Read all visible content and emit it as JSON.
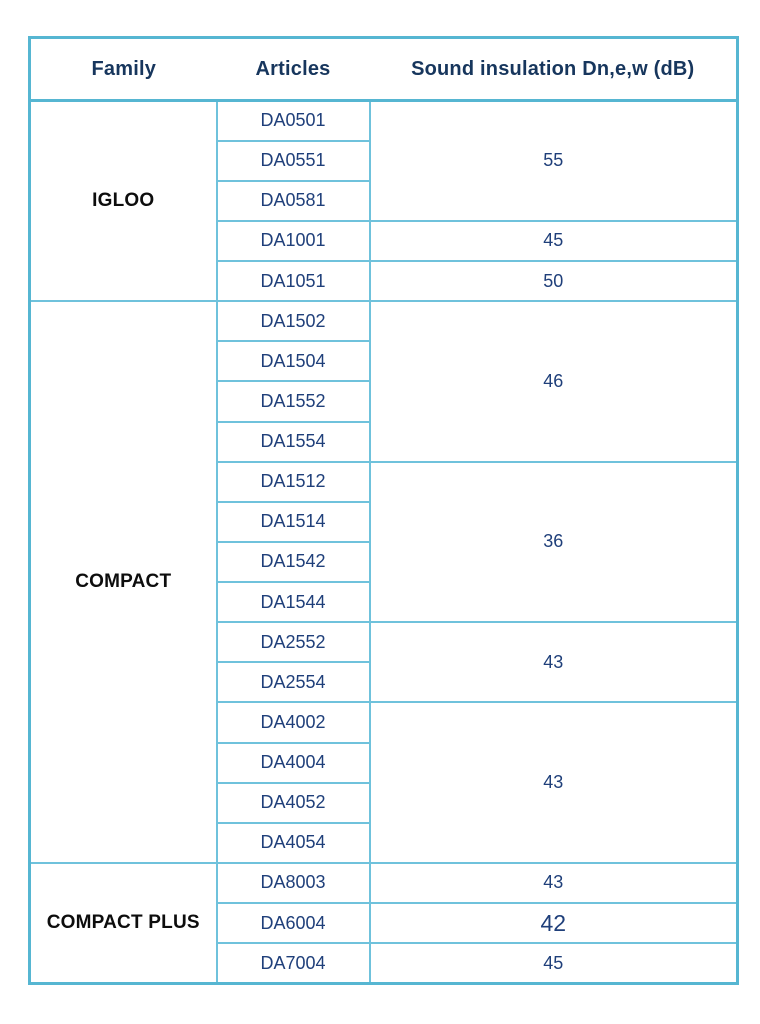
{
  "table": {
    "columns": [
      "Family",
      "Articles",
      "Sound insulation Dn,e,w (dB)"
    ],
    "families": [
      {
        "name": "IGLOO",
        "groups": [
          {
            "articles": [
              "DA0501",
              "DA0551",
              "DA0581"
            ],
            "value": "55"
          },
          {
            "articles": [
              "DA1001"
            ],
            "value": "45"
          },
          {
            "articles": [
              "DA1051"
            ],
            "value": "50"
          }
        ]
      },
      {
        "name": "COMPACT",
        "groups": [
          {
            "articles": [
              "DA1502",
              "DA1504",
              "DA1552",
              "DA1554"
            ],
            "value": "46"
          },
          {
            "articles": [
              "DA1512",
              "DA1514",
              "DA1542",
              "DA1544"
            ],
            "value": "36"
          },
          {
            "articles": [
              "DA2552",
              "DA2554"
            ],
            "value": "43"
          },
          {
            "articles": [
              "DA4002",
              "DA4004",
              "DA4052",
              "DA4054"
            ],
            "value": "43"
          }
        ]
      },
      {
        "name": "COMPACT PLUS",
        "groups": [
          {
            "articles": [
              "DA8003"
            ],
            "value": "43"
          },
          {
            "articles": [
              "DA6004"
            ],
            "value": "42",
            "emphasis": true
          },
          {
            "articles": [
              "DA7004"
            ],
            "value": "45"
          }
        ]
      }
    ],
    "colors": {
      "border_inner": "#6fc2dc",
      "border_outer": "#56b6d2",
      "header_text": "#17365d",
      "article_text": "#1f3f7a",
      "family_text": "#0d0d0d",
      "page_bg": "#ffffff"
    }
  },
  "chart_data": {
    "type": "table",
    "title": "Sound insulation Dn,e,w (dB)",
    "columns": [
      "Family",
      "Articles",
      "Sound insulation Dn,e,w (dB)"
    ],
    "rows": [
      [
        "IGLOO",
        "DA0501",
        55
      ],
      [
        "IGLOO",
        "DA0551",
        55
      ],
      [
        "IGLOO",
        "DA0581",
        55
      ],
      [
        "IGLOO",
        "DA1001",
        45
      ],
      [
        "IGLOO",
        "DA1051",
        50
      ],
      [
        "COMPACT",
        "DA1502",
        46
      ],
      [
        "COMPACT",
        "DA1504",
        46
      ],
      [
        "COMPACT",
        "DA1552",
        46
      ],
      [
        "COMPACT",
        "DA1554",
        46
      ],
      [
        "COMPACT",
        "DA1512",
        36
      ],
      [
        "COMPACT",
        "DA1514",
        36
      ],
      [
        "COMPACT",
        "DA1542",
        36
      ],
      [
        "COMPACT",
        "DA1544",
        36
      ],
      [
        "COMPACT",
        "DA2552",
        43
      ],
      [
        "COMPACT",
        "DA2554",
        43
      ],
      [
        "COMPACT",
        "DA4002",
        43
      ],
      [
        "COMPACT",
        "DA4004",
        43
      ],
      [
        "COMPACT",
        "DA4052",
        43
      ],
      [
        "COMPACT",
        "DA4054",
        43
      ],
      [
        "COMPACT PLUS",
        "DA8003",
        43
      ],
      [
        "COMPACT PLUS",
        "DA6004",
        42
      ],
      [
        "COMPACT PLUS",
        "DA7004",
        45
      ]
    ]
  }
}
